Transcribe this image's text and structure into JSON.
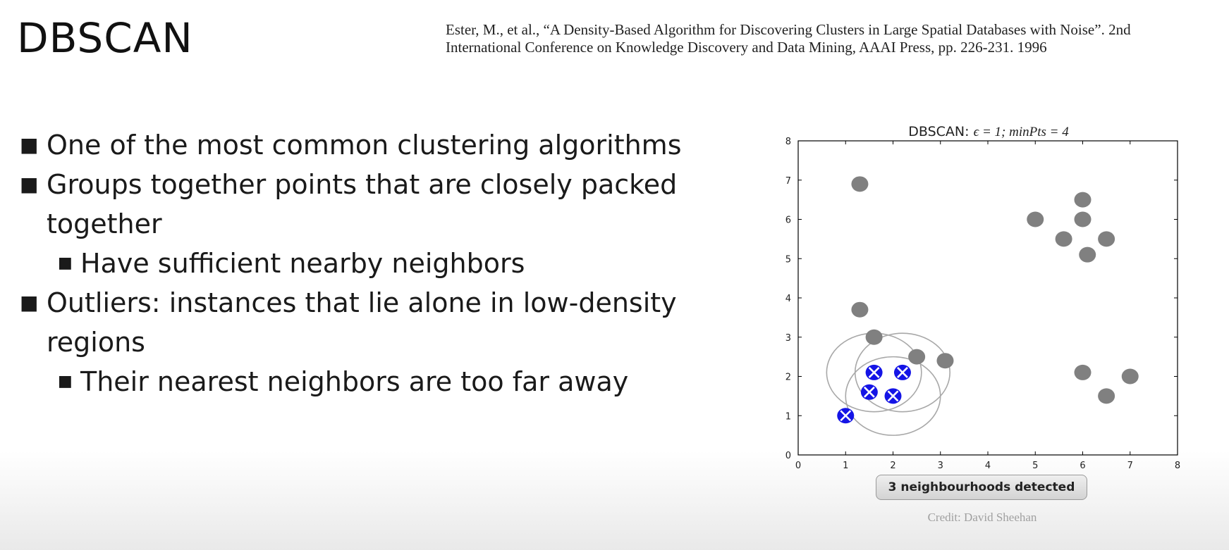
{
  "slide": {
    "title": "DBSCAN",
    "citation_line1": "Ester, M., et al., “A Density-Based Algorithm for Discovering Clusters in Large Spatial Databases with Noise”. 2nd",
    "citation_line2": "International Conference on Knowledge Discovery and Data Mining, AAAI Press, pp. 226-231. 1996",
    "bullets": [
      {
        "level": 1,
        "text": "One of the most common clustering algorithms"
      },
      {
        "level": 1,
        "text": "Groups together points that are closely packed together"
      },
      {
        "level": 2,
        "text": "Have sufficient nearby neighbors"
      },
      {
        "level": 1,
        "text": "Outliers: instances that lie alone in low-density regions"
      },
      {
        "level": 2,
        "text": "Their nearest neighbors are too far away"
      }
    ],
    "bullet_marker": "■",
    "button_label": "3 neighbourhoods detected",
    "credit": "Credit: David Sheehan"
  },
  "chart_data": {
    "type": "scatter",
    "title": "DBSCAN: ϵ = 1;  minPts = 4",
    "title_prefix": "DBSCAN: ",
    "title_formula": "ϵ = 1;  minPts = 4",
    "xlim": [
      0,
      8
    ],
    "ylim": [
      0,
      8
    ],
    "xticks": [
      0,
      1,
      2,
      3,
      4,
      5,
      6,
      7,
      8
    ],
    "yticks": [
      0,
      1,
      2,
      3,
      4,
      5,
      6,
      7,
      8
    ],
    "grid": false,
    "colors": {
      "unvisited": "#808080",
      "visited": "#1414e6",
      "circle": "#a8a8a8"
    },
    "points": [
      {
        "x": 1.3,
        "y": 6.9,
        "state": "unvisited"
      },
      {
        "x": 1.3,
        "y": 3.7,
        "state": "unvisited"
      },
      {
        "x": 1.6,
        "y": 3.0,
        "state": "unvisited"
      },
      {
        "x": 2.5,
        "y": 2.5,
        "state": "unvisited"
      },
      {
        "x": 3.1,
        "y": 2.4,
        "state": "unvisited"
      },
      {
        "x": 1.0,
        "y": 1.0,
        "state": "visited"
      },
      {
        "x": 1.5,
        "y": 1.6,
        "state": "visited"
      },
      {
        "x": 1.6,
        "y": 2.1,
        "state": "visited"
      },
      {
        "x": 2.0,
        "y": 1.5,
        "state": "visited"
      },
      {
        "x": 2.2,
        "y": 2.1,
        "state": "visited"
      },
      {
        "x": 5.0,
        "y": 6.0,
        "state": "unvisited"
      },
      {
        "x": 6.0,
        "y": 6.5,
        "state": "unvisited"
      },
      {
        "x": 6.0,
        "y": 6.0,
        "state": "unvisited"
      },
      {
        "x": 5.6,
        "y": 5.5,
        "state": "unvisited"
      },
      {
        "x": 6.5,
        "y": 5.5,
        "state": "unvisited"
      },
      {
        "x": 6.1,
        "y": 5.1,
        "state": "unvisited"
      },
      {
        "x": 6.0,
        "y": 2.1,
        "state": "unvisited"
      },
      {
        "x": 7.0,
        "y": 2.0,
        "state": "unvisited"
      },
      {
        "x": 6.5,
        "y": 1.5,
        "state": "unvisited"
      }
    ],
    "neighbourhoods": [
      {
        "cx": 1.6,
        "cy": 2.1,
        "r": 1.0
      },
      {
        "cx": 2.2,
        "cy": 2.1,
        "r": 1.0
      },
      {
        "cx": 2.0,
        "cy": 1.5,
        "r": 1.0
      }
    ]
  }
}
